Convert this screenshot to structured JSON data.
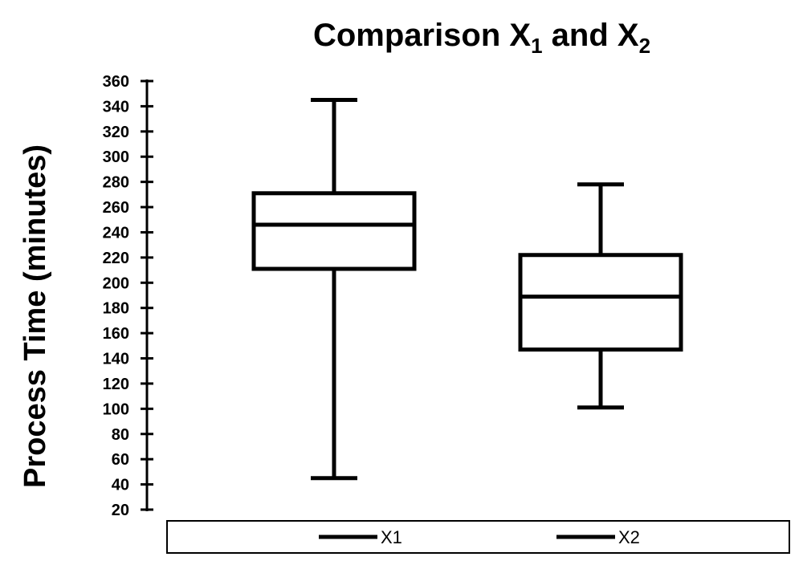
{
  "chart_data": {
    "type": "boxplot",
    "title": "Comparison X",
    "title_parts": [
      {
        "text": "Comparison X",
        "sub": "1"
      },
      {
        "text": " and X",
        "sub": "2"
      }
    ],
    "ylabel": "Process Time (minutes)",
    "xlabel": "",
    "ylim": [
      20,
      360
    ],
    "yticks": [
      20,
      40,
      60,
      80,
      100,
      120,
      140,
      160,
      180,
      200,
      220,
      240,
      260,
      280,
      300,
      320,
      340,
      360
    ],
    "legend_position": "bottom",
    "grid": false,
    "series": [
      {
        "name": "X1",
        "min": 45,
        "q1": 211,
        "median": 246,
        "q3": 271,
        "max": 345
      },
      {
        "name": "X2",
        "min": 101,
        "q1": 147,
        "median": 189,
        "q3": 222,
        "max": 278
      }
    ]
  }
}
